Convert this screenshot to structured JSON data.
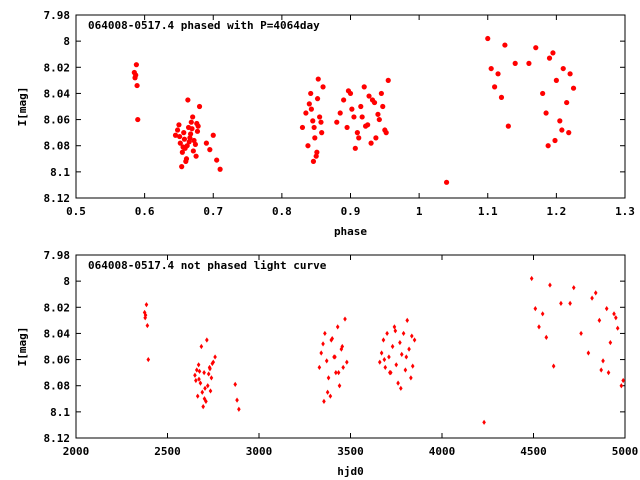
{
  "chart_data": [
    {
      "type": "scatter",
      "title": "064008-0517.4 phased with P=4064day",
      "xlabel": "phase",
      "ylabel": "I[mag]",
      "xlim": [
        0.5,
        1.3
      ],
      "ylim": [
        8.12,
        7.98
      ],
      "y_inverted": true,
      "x_ticks": [
        "0.5",
        "0.6",
        "0.7",
        "0.8",
        "0.9",
        "1",
        "1.1",
        "1.2",
        "1.3"
      ],
      "y_ticks": [
        "7.98",
        "8",
        "8.02",
        "8.04",
        "8.06",
        "8.08",
        "8.1",
        "8.12"
      ],
      "marker_color": "#ff0000",
      "marker": "filled-circle",
      "grid": false,
      "series": [
        {
          "x": [
            0.585,
            0.587,
            0.588,
            0.589,
            0.59,
            0.586,
            0.645,
            0.648,
            0.65,
            0.652,
            0.655,
            0.657,
            0.66,
            0.662,
            0.664,
            0.666,
            0.668,
            0.67,
            0.672,
            0.675,
            0.677,
            0.68,
            0.654,
            0.659,
            0.663,
            0.667,
            0.671,
            0.676,
            0.658,
            0.661,
            0.669,
            0.674,
            0.678,
            0.651,
            0.656,
            0.665,
            0.69,
            0.695,
            0.7,
            0.705,
            0.71,
            0.83,
            0.835,
            0.84,
            0.842,
            0.845,
            0.848,
            0.85,
            0.852,
            0.855,
            0.858,
            0.86,
            0.838,
            0.843,
            0.847,
            0.853,
            0.857,
            0.846,
            0.851,
            0.88,
            0.885,
            0.89,
            0.895,
            0.9,
            0.905,
            0.91,
            0.915,
            0.92,
            0.925,
            0.93,
            0.935,
            0.94,
            0.945,
            0.95,
            0.955,
            0.902,
            0.912,
            0.922,
            0.932,
            0.942,
            0.952,
            0.897,
            0.907,
            0.917,
            0.927,
            0.937,
            0.947,
            1.04,
            1.1,
            1.105,
            1.11,
            1.115,
            1.12,
            1.125,
            1.13,
            1.14,
            1.16,
            1.17,
            1.18,
            1.185,
            1.19,
            1.195,
            1.2,
            1.205,
            1.21,
            1.215,
            1.22,
            1.225,
            1.188,
            1.198,
            1.208,
            1.218
          ],
          "y": [
            8.024,
            8.026,
            8.018,
            8.034,
            8.06,
            8.028,
            8.072,
            8.068,
            8.064,
            8.078,
            8.085,
            8.07,
            8.092,
            8.08,
            8.066,
            8.074,
            8.062,
            8.058,
            8.076,
            8.088,
            8.069,
            8.05,
            8.096,
            8.082,
            8.045,
            8.071,
            8.084,
            8.063,
            8.075,
            8.09,
            8.067,
            8.079,
            8.065,
            8.073,
            8.081,
            8.077,
            8.078,
            8.083,
            8.072,
            8.091,
            8.098,
            8.066,
            8.055,
            8.048,
            8.04,
            8.061,
            8.074,
            8.088,
            8.044,
            8.058,
            8.07,
            8.035,
            8.08,
            8.052,
            8.066,
            8.029,
            8.062,
            8.092,
            8.085,
            8.062,
            8.055,
            8.045,
            8.066,
            8.04,
            8.058,
            8.07,
            8.05,
            8.035,
            8.064,
            8.078,
            8.047,
            8.056,
            8.04,
            8.068,
            8.03,
            8.052,
            8.074,
            8.065,
            8.045,
            8.06,
            8.07,
            8.038,
            8.082,
            8.058,
            8.042,
            8.074,
            8.05,
            8.108,
            7.998,
            8.021,
            8.035,
            8.025,
            8.043,
            8.003,
            8.065,
            8.017,
            8.017,
            8.005,
            8.04,
            8.055,
            8.013,
            8.009,
            8.03,
            8.061,
            8.021,
            8.047,
            8.025,
            8.036,
            8.08,
            8.076,
            8.068,
            8.07
          ]
        }
      ]
    },
    {
      "type": "scatter",
      "title": "064008-0517.4 not phased light curve",
      "xlabel": "hjd0",
      "ylabel": "I[mag]",
      "xlim": [
        2000,
        5000
      ],
      "ylim": [
        8.12,
        7.98
      ],
      "y_inverted": true,
      "x_ticks": [
        "2000",
        "2500",
        "3000",
        "3500",
        "4000",
        "4500",
        "5000"
      ],
      "y_ticks": [
        "7.98",
        "8",
        "8.02",
        "8.04",
        "8.06",
        "8.08",
        "8.1",
        "8.12"
      ],
      "marker_color": "#ff0000",
      "marker": "small-diamond",
      "grid": false,
      "series": [
        {
          "x": [
            2375,
            2380,
            2385,
            2390,
            2395,
            2378,
            2650,
            2660,
            2670,
            2680,
            2690,
            2700,
            2710,
            2720,
            2730,
            2740,
            2750,
            2760,
            2655,
            2665,
            2675,
            2685,
            2695,
            2705,
            2715,
            2725,
            2735,
            2745,
            2672,
            2702,
            2732,
            2870,
            2880,
            2890,
            3330,
            3340,
            3350,
            3360,
            3370,
            3380,
            3390,
            3400,
            3410,
            3420,
            3430,
            3440,
            3450,
            3460,
            3470,
            3480,
            3355,
            3375,
            3395,
            3415,
            3435,
            3455,
            3660,
            3670,
            3680,
            3690,
            3700,
            3710,
            3720,
            3730,
            3740,
            3750,
            3760,
            3770,
            3780,
            3790,
            3800,
            3810,
            3820,
            3830,
            3840,
            3850,
            3685,
            3715,
            3745,
            3775,
            3805,
            3835,
            4230,
            4490,
            4510,
            4530,
            4550,
            4570,
            4590,
            4610,
            4650,
            4700,
            4720,
            4760,
            4800,
            4820,
            4840,
            4860,
            4880,
            4900,
            4920,
            4940,
            4960,
            4980,
            4990,
            4870,
            4910,
            4950
          ],
          "y": [
            8.024,
            8.026,
            8.018,
            8.034,
            8.06,
            8.028,
            8.072,
            8.068,
            8.064,
            8.078,
            8.085,
            8.07,
            8.092,
            8.08,
            8.066,
            8.074,
            8.062,
            8.058,
            8.076,
            8.088,
            8.069,
            8.05,
            8.096,
            8.082,
            8.045,
            8.071,
            8.084,
            8.063,
            8.075,
            8.09,
            8.067,
            8.079,
            8.091,
            8.098,
            8.066,
            8.055,
            8.048,
            8.04,
            8.061,
            8.074,
            8.088,
            8.044,
            8.058,
            8.07,
            8.035,
            8.08,
            8.052,
            8.066,
            8.029,
            8.062,
            8.092,
            8.085,
            8.045,
            8.058,
            8.07,
            8.05,
            8.062,
            8.055,
            8.045,
            8.066,
            8.04,
            8.058,
            8.07,
            8.05,
            8.035,
            8.064,
            8.078,
            8.047,
            8.056,
            8.04,
            8.068,
            8.03,
            8.052,
            8.074,
            8.065,
            8.045,
            8.06,
            8.07,
            8.038,
            8.082,
            8.058,
            8.042,
            8.108,
            7.998,
            8.021,
            8.035,
            8.025,
            8.043,
            8.003,
            8.065,
            8.017,
            8.017,
            8.005,
            8.04,
            8.055,
            8.013,
            8.009,
            8.03,
            8.061,
            8.021,
            8.047,
            8.025,
            8.036,
            8.08,
            8.076,
            8.068,
            8.07,
            8.028
          ]
        }
      ]
    }
  ]
}
